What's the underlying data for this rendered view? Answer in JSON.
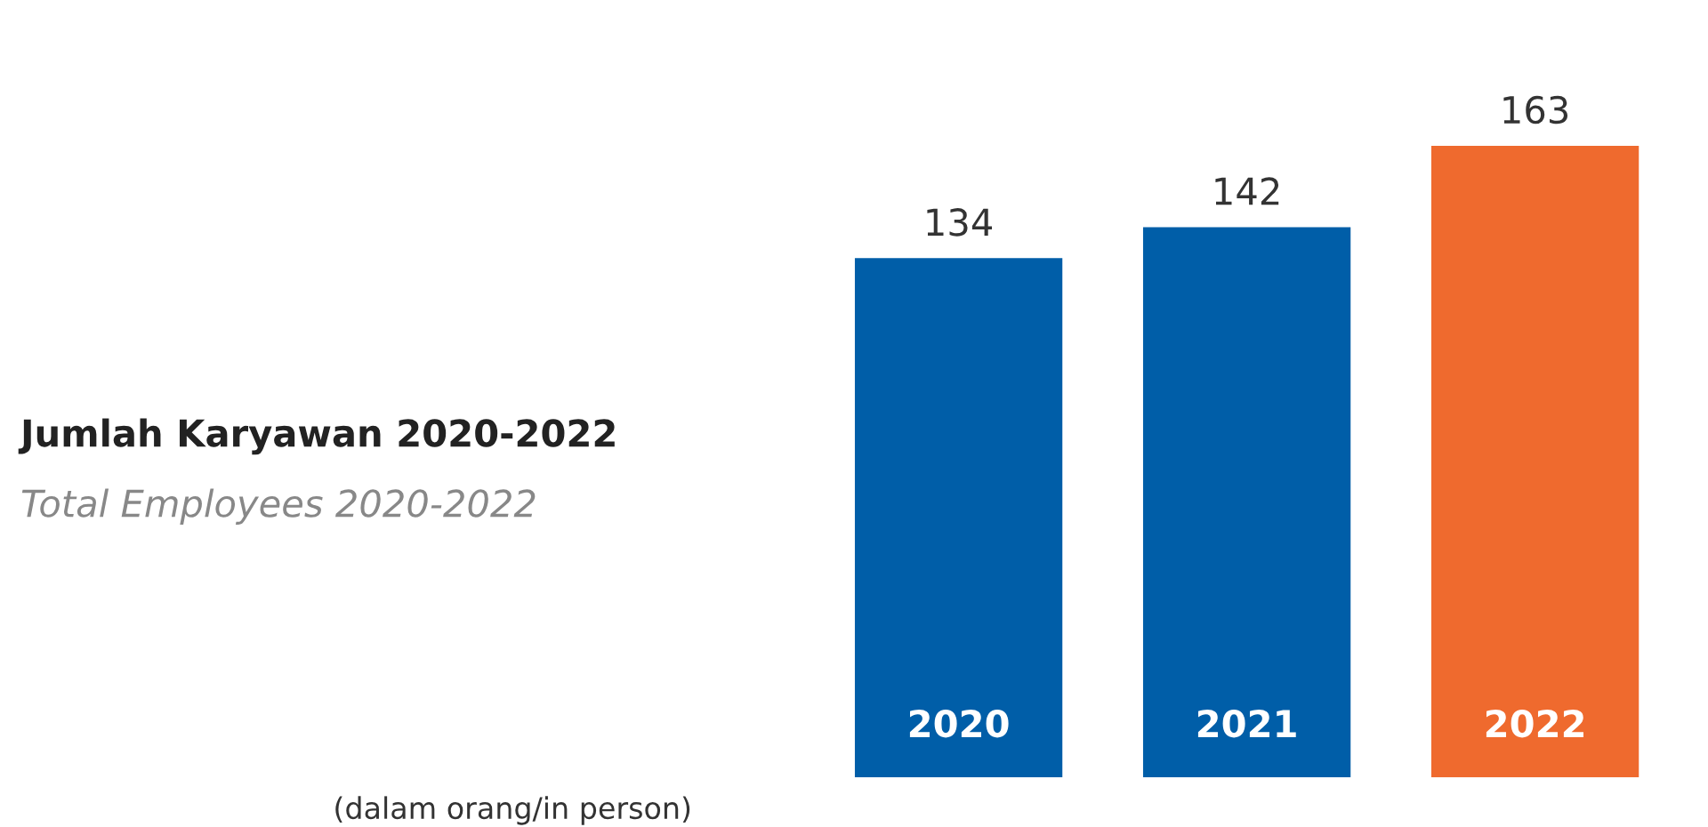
{
  "chart_data": {
    "type": "bar",
    "title": "Jumlah Karyawan 2020-2022",
    "subtitle": "Total Employees 2020-2022",
    "categories": [
      "2020",
      "2021",
      "2022"
    ],
    "values": [
      134,
      142,
      163
    ],
    "colors": [
      "#005ea8",
      "#005ea8",
      "#ef6a2e"
    ],
    "data_labels": true,
    "annotations": [
      "(dalam orang/in person)"
    ]
  }
}
